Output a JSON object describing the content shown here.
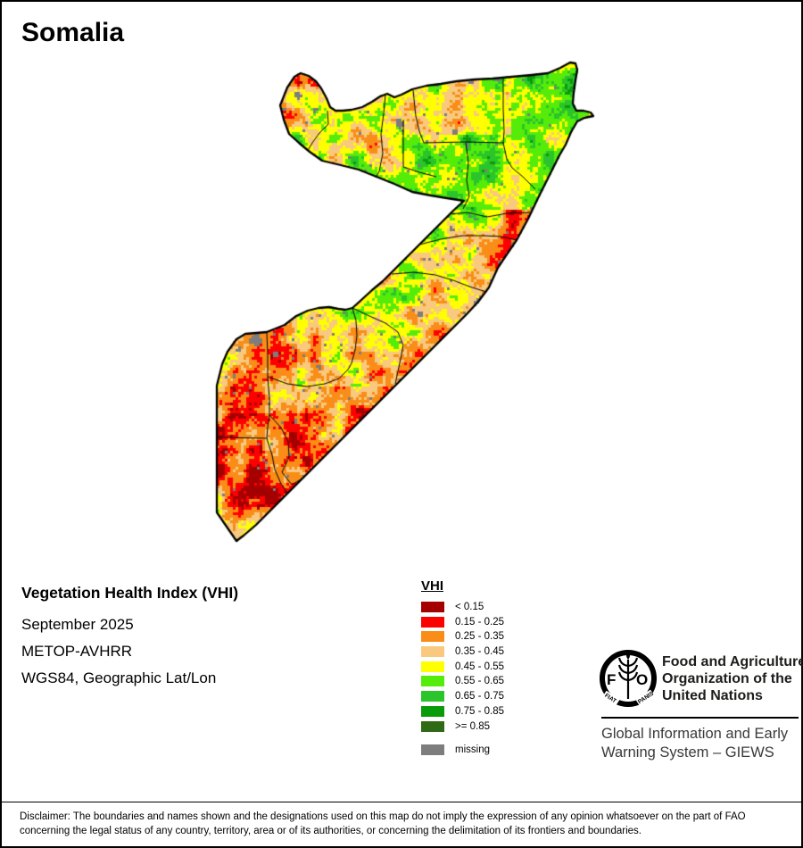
{
  "title": "Somalia",
  "map": {
    "description": "Somalia Vegetation Health Index raster map, September 2025"
  },
  "info": {
    "heading": "Vegetation Health Index (VHI)",
    "date": "September 2025",
    "sensor": "METOP-AVHRR",
    "projection": "WGS84, Geographic Lat/Lon"
  },
  "legend": {
    "title": "VHI",
    "classes": [
      {
        "label": "< 0.15",
        "color": "#A50000"
      },
      {
        "label": "0.15 - 0.25",
        "color": "#FF0000"
      },
      {
        "label": "0.25 - 0.35",
        "color": "#F98D17"
      },
      {
        "label": "0.35 - 0.45",
        "color": "#F8C97E"
      },
      {
        "label": "0.45 - 0.55",
        "color": "#FFFF00"
      },
      {
        "label": "0.55 - 0.65",
        "color": "#55EC0A"
      },
      {
        "label": "0.65 - 0.75",
        "color": "#2BC42B"
      },
      {
        "label": "0.75 - 0.85",
        "color": "#0A9B0A"
      },
      {
        "label": ">= 0.85",
        "color": "#2F6B16"
      }
    ],
    "missing": {
      "label": "missing",
      "color": "#7D7D7D"
    }
  },
  "org": {
    "logo_acronym_f": "F",
    "logo_acronym_o": "O",
    "logo_motto_left": "FIAT",
    "logo_motto_right": "PANIS",
    "name_line1": "Food and Agriculture",
    "name_line2": "Organization of the",
    "name_line3": "United Nations",
    "giews_line1": "Global Information and Early",
    "giews_line2": "Warning System – GIEWS"
  },
  "disclaimer": {
    "line1": "Disclaimer: The boundaries and names shown and the designations used on this map do not imply the expression of any opinion whatsoever on the part of FAO",
    "line2": "concerning the legal status of any country, territory, area or of its authorities, or concerning the delimitation of its frontiers and boundaries."
  },
  "colors": {
    "frame_border": "#000000",
    "giews_text": "#3a3a3a",
    "admin_line": "#000000"
  }
}
